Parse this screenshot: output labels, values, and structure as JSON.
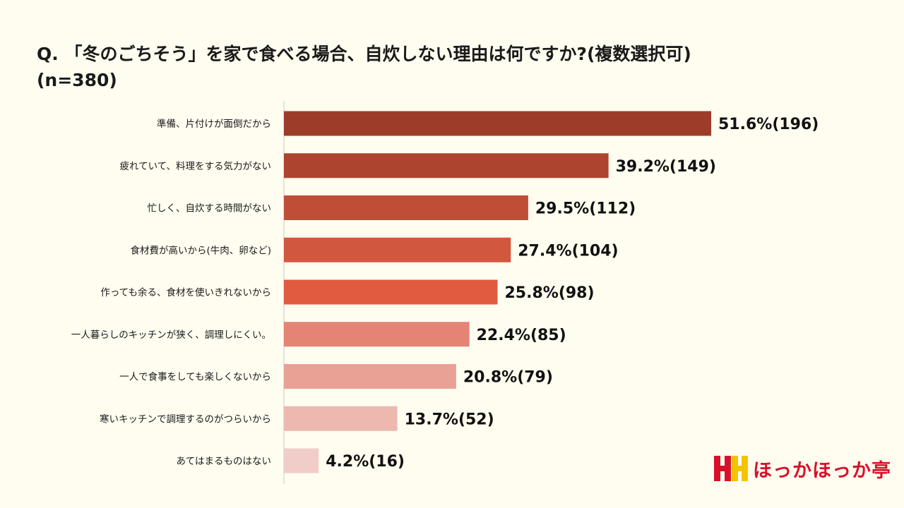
{
  "title": {
    "line1": "Q. 「冬のごちそう」を家で食べる場合、自炊しない理由は何ですか?(複数選択可)",
    "line2": "(n=380)"
  },
  "chart_data": {
    "type": "bar",
    "orientation": "horizontal",
    "categories": [
      "準備、片付けが面倒だから",
      "疲れていて、料理をする気力がない",
      "忙しく、自炊する時間がない",
      "食材費が高いから(牛肉、卵など)",
      "作っても余る、食材を使いきれないから",
      "一人暮らしのキッチンが狭く、調理しにくい。",
      "一人で食事をしても楽しくないから",
      "寒いキッチンで調理するのがつらいから",
      "あてはまるものはない"
    ],
    "values": [
      51.6,
      39.2,
      29.5,
      27.4,
      25.8,
      22.4,
      20.8,
      13.7,
      4.2
    ],
    "counts": [
      196,
      149,
      112,
      104,
      98,
      85,
      79,
      52,
      16
    ],
    "data_labels": [
      "51.6%(196)",
      "39.2%(149)",
      "29.5%(112)",
      "27.4%(104)",
      "25.8%(98)",
      "22.4%(85)",
      "20.8%(79)",
      "13.7%(52)",
      "4.2%(16)"
    ],
    "colors": [
      "#9c3d29",
      "#ad4430",
      "#bf4e36",
      "#d1583e",
      "#e05b40",
      "#e48474",
      "#e9a196",
      "#ecb8b0",
      "#f0cdc9"
    ],
    "grid": false,
    "legend": "none",
    "unit": "%"
  },
  "logo": {
    "name": "ほっかほっか亭",
    "mark_color": "#d8112a",
    "mark_accent": "#f5c400"
  }
}
